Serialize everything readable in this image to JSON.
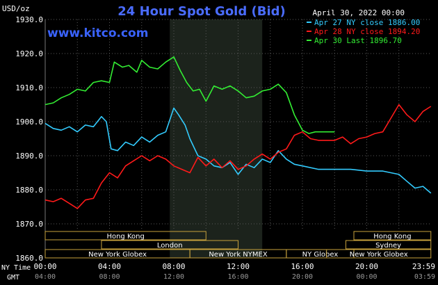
{
  "header": {
    "unit": "USD/oz",
    "title": "24 Hour Spot Gold (Bid)",
    "date": "April 30, 2022 00:00",
    "watermark": "www.kitco.com"
  },
  "colors": {
    "background": "#000000",
    "title": "#4a6cff",
    "watermark": "#3a63ff",
    "blue_series": "#33ccff",
    "red_series": "#ff1a1a",
    "green_series": "#33ee33",
    "shaded_band": "#1c231c",
    "session_box": "#c8a23c"
  },
  "chart_data": {
    "type": "line",
    "title": "24 Hour Spot Gold (Bid)",
    "ylabel": "USD/oz",
    "ylim": [
      1860,
      1930
    ],
    "xlim": [
      0,
      24
    ],
    "y_ticks": [
      "1860.0",
      "1870.0",
      "1880.0",
      "1890.0",
      "1900.0",
      "1910.0",
      "1920.0",
      "1930.0"
    ],
    "x_ticks_ny": [
      "00:00",
      "04:00",
      "08:00",
      "12:00",
      "16:00",
      "20:00",
      "23:59"
    ],
    "x_ticks_gmt": [
      "04:00",
      "08:00",
      "12:00",
      "16:00",
      "20:00",
      "00:00",
      "03:59"
    ],
    "x_axis_label_ny": "NY Time",
    "x_axis_label_gmt": "GMT",
    "shaded_range": [
      7.75,
      13.5
    ],
    "grid": "dotted",
    "legend_position": "top-right",
    "series": [
      {
        "name": "Apr 27 NY close 1886.00",
        "color": "#33ccff",
        "points": [
          [
            0,
            1899.5
          ],
          [
            0.5,
            1898
          ],
          [
            1,
            1897.5
          ],
          [
            1.5,
            1898.5
          ],
          [
            2,
            1897
          ],
          [
            2.5,
            1899
          ],
          [
            3,
            1898.5
          ],
          [
            3.5,
            1901.5
          ],
          [
            3.8,
            1900
          ],
          [
            4.1,
            1892
          ],
          [
            4.5,
            1891.5
          ],
          [
            5,
            1894
          ],
          [
            5.5,
            1893
          ],
          [
            6,
            1895.5
          ],
          [
            6.5,
            1894
          ],
          [
            7,
            1896
          ],
          [
            7.5,
            1897
          ],
          [
            8,
            1904
          ],
          [
            8.3,
            1902
          ],
          [
            8.7,
            1899
          ],
          [
            9,
            1895
          ],
          [
            9.5,
            1890
          ],
          [
            10,
            1889
          ],
          [
            10.5,
            1887
          ],
          [
            11,
            1886.5
          ],
          [
            11.5,
            1888
          ],
          [
            12,
            1884.5
          ],
          [
            12.5,
            1887.5
          ],
          [
            13,
            1886.5
          ],
          [
            13.5,
            1889
          ],
          [
            14,
            1888
          ],
          [
            14.5,
            1891.5
          ],
          [
            15,
            1889
          ],
          [
            15.5,
            1887.5
          ],
          [
            16,
            1887
          ],
          [
            17,
            1886
          ],
          [
            18,
            1886
          ],
          [
            19,
            1886
          ],
          [
            20,
            1885.5
          ],
          [
            21,
            1885.5
          ],
          [
            22,
            1884.5
          ],
          [
            22.5,
            1882.5
          ],
          [
            23,
            1880.5
          ],
          [
            23.5,
            1881
          ],
          [
            23.99,
            1879
          ]
        ]
      },
      {
        "name": "Apr 28 NY close 1894.20",
        "color": "#ff1a1a",
        "points": [
          [
            0,
            1877
          ],
          [
            0.5,
            1876.5
          ],
          [
            1,
            1877.5
          ],
          [
            1.5,
            1876
          ],
          [
            2,
            1874.5
          ],
          [
            2.5,
            1877
          ],
          [
            3,
            1877.5
          ],
          [
            3.5,
            1882
          ],
          [
            4,
            1885
          ],
          [
            4.5,
            1883.5
          ],
          [
            5,
            1887
          ],
          [
            5.5,
            1888.5
          ],
          [
            6,
            1890
          ],
          [
            6.5,
            1888.5
          ],
          [
            7,
            1890
          ],
          [
            7.5,
            1889
          ],
          [
            8,
            1887
          ],
          [
            8.5,
            1886
          ],
          [
            9,
            1885
          ],
          [
            9.5,
            1889.5
          ],
          [
            10,
            1887
          ],
          [
            10.5,
            1889
          ],
          [
            11,
            1886.5
          ],
          [
            11.5,
            1888.5
          ],
          [
            12,
            1886
          ],
          [
            12.5,
            1887
          ],
          [
            13,
            1889
          ],
          [
            13.5,
            1890.5
          ],
          [
            14,
            1889
          ],
          [
            14.5,
            1891
          ],
          [
            15,
            1892
          ],
          [
            15.5,
            1896
          ],
          [
            16,
            1897
          ],
          [
            16.5,
            1895
          ],
          [
            17,
            1894.5
          ],
          [
            18,
            1894.5
          ],
          [
            18.5,
            1895.5
          ],
          [
            19,
            1893.5
          ],
          [
            19.5,
            1895
          ],
          [
            20,
            1895.5
          ],
          [
            20.5,
            1896.5
          ],
          [
            21,
            1897
          ],
          [
            21.5,
            1901
          ],
          [
            22,
            1905
          ],
          [
            22.5,
            1902
          ],
          [
            23,
            1900
          ],
          [
            23.5,
            1903
          ],
          [
            23.99,
            1904.5
          ]
        ]
      },
      {
        "name": "Apr 30 Last 1896.70",
        "color": "#33ee33",
        "points": [
          [
            0,
            1905
          ],
          [
            0.5,
            1905.5
          ],
          [
            1,
            1907
          ],
          [
            1.5,
            1908
          ],
          [
            2,
            1909.5
          ],
          [
            2.5,
            1909
          ],
          [
            3,
            1911.5
          ],
          [
            3.5,
            1912
          ],
          [
            4,
            1911.5
          ],
          [
            4.3,
            1917.5
          ],
          [
            4.8,
            1916
          ],
          [
            5.2,
            1916.5
          ],
          [
            5.7,
            1914.5
          ],
          [
            6,
            1918
          ],
          [
            6.5,
            1916
          ],
          [
            7,
            1915.5
          ],
          [
            7.5,
            1917.5
          ],
          [
            8,
            1919
          ],
          [
            8.4,
            1915
          ],
          [
            8.8,
            1911.5
          ],
          [
            9.2,
            1909
          ],
          [
            9.6,
            1909.5
          ],
          [
            10,
            1906
          ],
          [
            10.5,
            1910.5
          ],
          [
            11,
            1909.5
          ],
          [
            11.5,
            1910.5
          ],
          [
            12,
            1909
          ],
          [
            12.5,
            1907
          ],
          [
            13,
            1907.5
          ],
          [
            13.5,
            1909
          ],
          [
            14,
            1909.5
          ],
          [
            14.5,
            1911
          ],
          [
            15,
            1908.5
          ],
          [
            15.5,
            1902
          ],
          [
            16,
            1897.5
          ],
          [
            16.4,
            1896.5
          ],
          [
            16.8,
            1897
          ],
          [
            17.5,
            1897
          ],
          [
            18,
            1897
          ]
        ]
      }
    ],
    "sessions": [
      {
        "label": "Hong Kong",
        "start": 0,
        "end": 10,
        "row": 0
      },
      {
        "label": "London",
        "start": 3.5,
        "end": 12,
        "row": 1
      },
      {
        "label": "New York Globex",
        "start": 0,
        "end": 9,
        "row": 2
      },
      {
        "label": "New York NYMEX",
        "start": 9,
        "end": 15,
        "row": 2
      },
      {
        "label": "NY Globex",
        "start": 15,
        "end": 19.2,
        "row": 2
      },
      {
        "label": "Hong Kong",
        "start": 19.2,
        "end": 23.99,
        "row": 0
      },
      {
        "label": "Sydney",
        "start": 18.7,
        "end": 23.99,
        "row": 1
      },
      {
        "label": "New York Globex",
        "start": 17.5,
        "end": 23.99,
        "row": 2
      }
    ]
  }
}
